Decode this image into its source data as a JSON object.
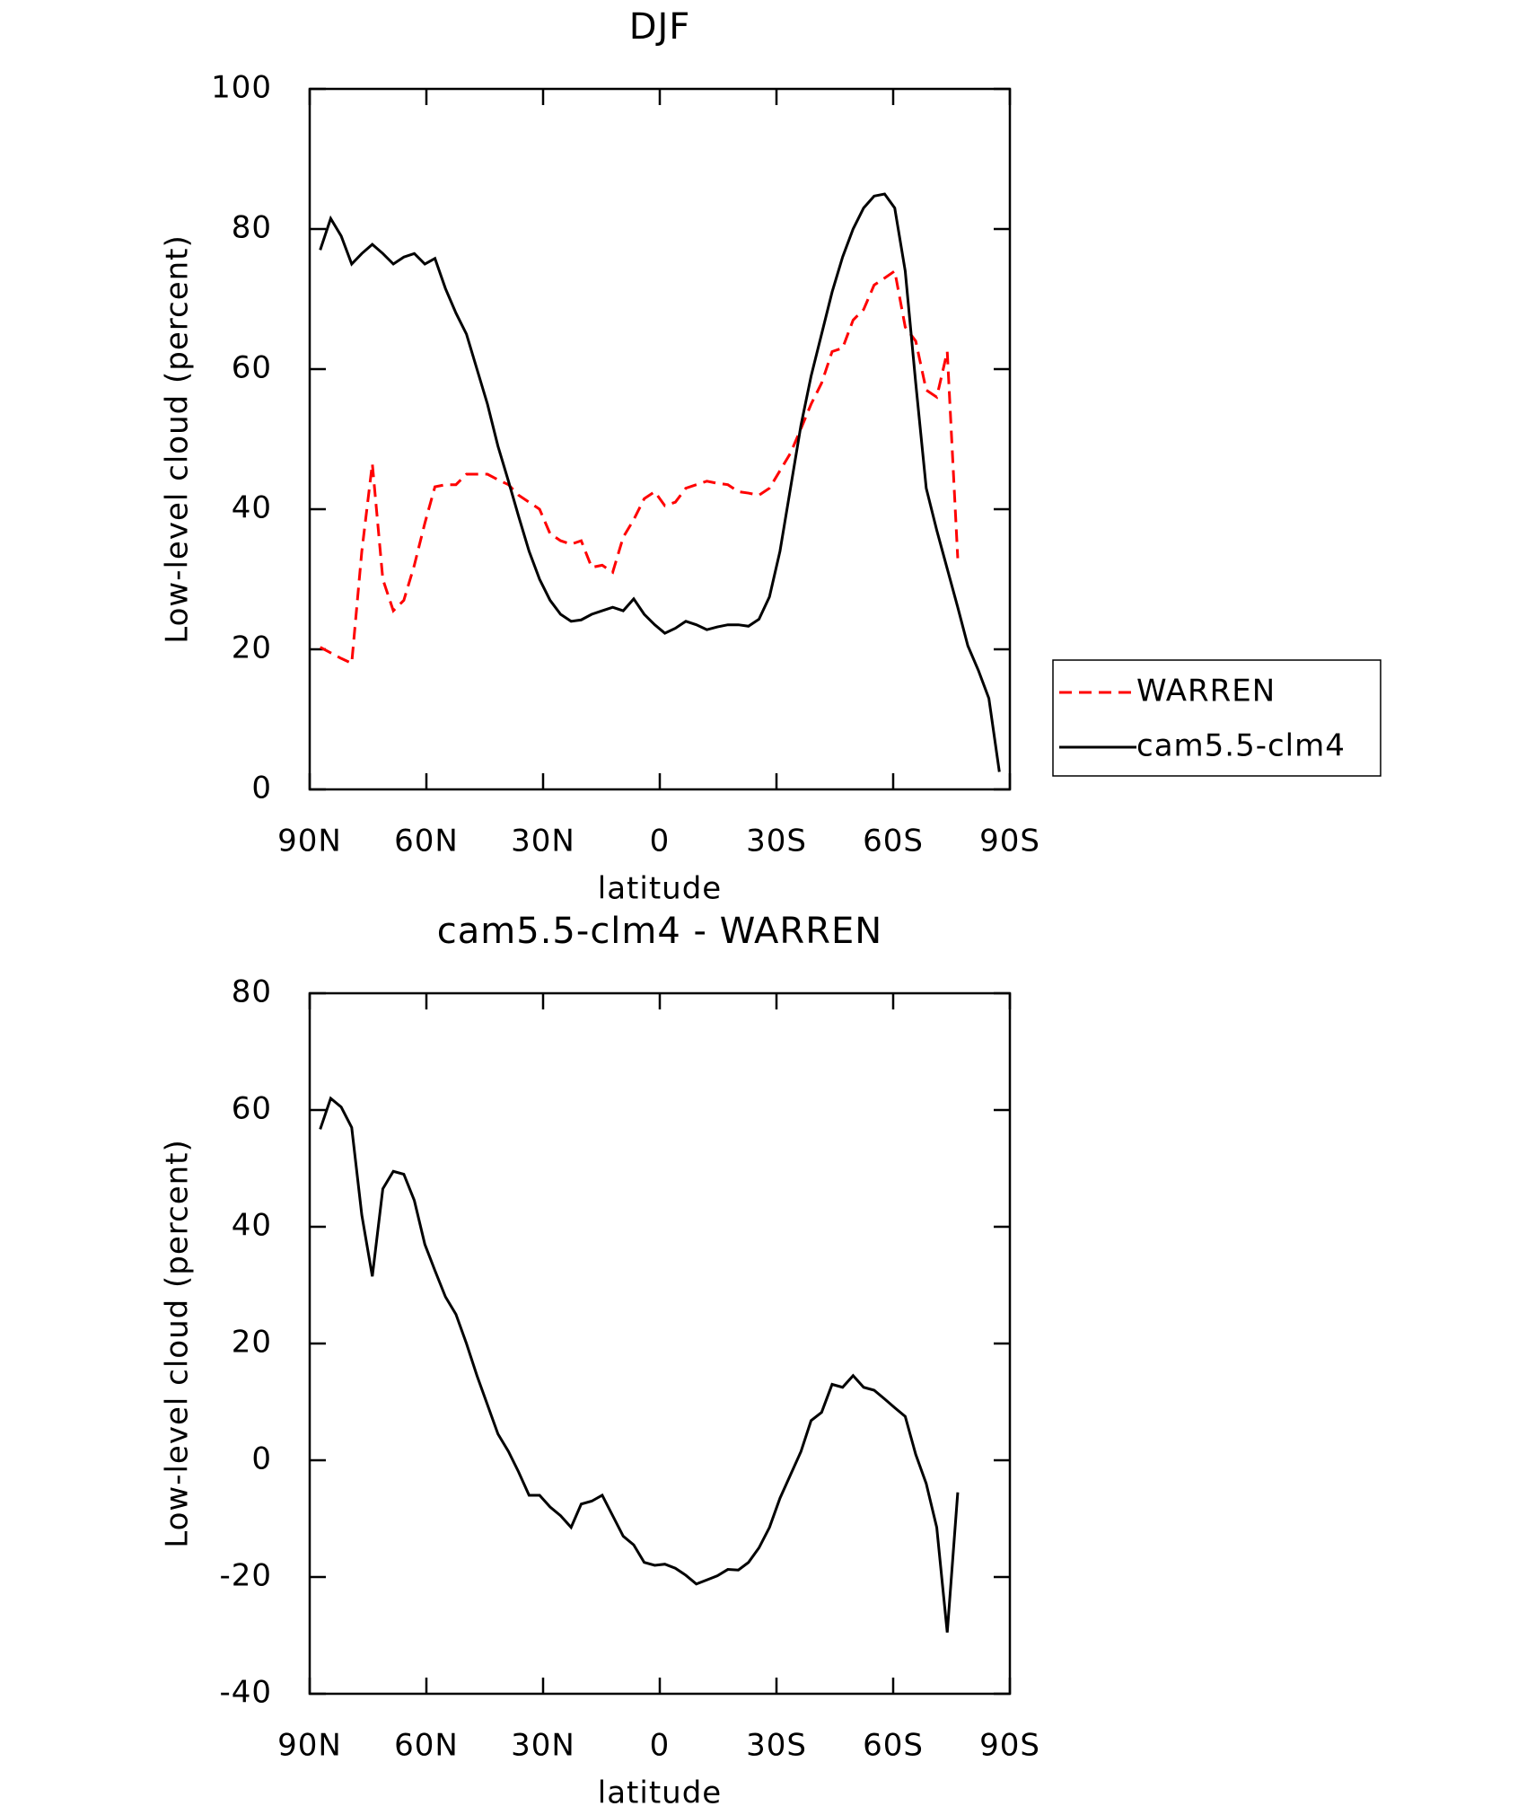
{
  "chart_data": [
    {
      "type": "line",
      "title": "DJF",
      "x_label": "latitude",
      "y_label": "Low-level cloud (percent)",
      "x": [
        87.3,
        84.6,
        81.9,
        79.2,
        76.6,
        73.9,
        71.2,
        68.5,
        65.8,
        63.1,
        60.4,
        57.8,
        55.1,
        52.4,
        49.7,
        47.0,
        44.3,
        41.6,
        38.9,
        36.3,
        33.6,
        30.9,
        28.2,
        25.5,
        22.8,
        20.2,
        17.5,
        14.8,
        12.1,
        9.4,
        6.7,
        4.0,
        1.3,
        -1.3,
        -4.0,
        -6.7,
        -9.4,
        -12.1,
        -14.8,
        -17.5,
        -20.2,
        -22.8,
        -25.5,
        -28.2,
        -30.9,
        -33.6,
        -36.3,
        -38.9,
        -41.6,
        -44.3,
        -47.0,
        -49.7,
        -52.4,
        -55.1,
        -57.8,
        -60.4,
        -63.1,
        -65.8,
        -68.5,
        -71.2,
        -73.9,
        -76.6,
        -79.2,
        -81.9,
        -84.6,
        -87.3
      ],
      "xlim": [
        90,
        -90
      ],
      "xticks": [
        {
          "value": 90,
          "label": "90N"
        },
        {
          "value": 60,
          "label": "60N"
        },
        {
          "value": 30,
          "label": "30N"
        },
        0,
        {
          "value": -30,
          "label": "30S"
        },
        {
          "value": -60,
          "label": "60S"
        },
        {
          "value": -90,
          "label": "90S"
        }
      ],
      "ylim": [
        0,
        100
      ],
      "yticks": [
        0,
        20,
        40,
        60,
        80,
        100
      ],
      "legend": "right",
      "series": [
        {
          "name": "WARREN",
          "color": "#ff0000",
          "line_style": "dashed",
          "values": [
            20.3,
            19.5,
            18.7,
            18,
            34,
            46.5,
            30,
            25.5,
            27,
            32,
            38,
            43.2,
            43.5,
            43.5,
            45,
            45,
            45,
            44.2,
            43.5,
            42,
            41,
            40,
            36.5,
            35.5,
            35,
            35.5,
            31.7,
            32,
            31,
            36,
            38.5,
            41.5,
            42.5,
            40.5,
            41,
            43,
            43.5,
            44,
            43.7,
            43.5,
            42.5,
            42.3,
            42,
            43,
            45.5,
            48,
            51.5,
            55,
            58,
            62.5,
            63,
            67,
            68.5,
            72,
            73,
            74,
            66,
            64,
            57,
            56,
            62.5,
            33,
            null,
            null,
            null,
            null
          ]
        },
        {
          "name": "cam5.5-clm4",
          "color": "#000000",
          "line_style": "solid",
          "values": [
            77,
            81.5,
            79,
            75,
            76.5,
            77.8,
            76.5,
            75,
            76,
            76.5,
            75,
            75.8,
            71.5,
            68,
            65,
            60,
            55,
            49,
            44,
            39,
            34,
            30,
            27,
            25,
            24,
            24.2,
            25,
            25.5,
            26,
            25.5,
            27.2,
            25,
            23.5,
            22.3,
            23,
            24,
            23.5,
            22.8,
            23.2,
            23.5,
            23.5,
            23.3,
            24.3,
            27.5,
            34,
            43,
            52,
            59,
            65,
            71,
            76,
            80,
            83,
            84.7,
            85,
            83,
            74,
            58,
            43,
            37,
            31.5,
            26,
            20.5,
            17,
            13,
            2.5
          ]
        }
      ]
    },
    {
      "type": "line",
      "title": "cam5.5-clm4 - WARREN",
      "x_label": "latitude",
      "y_label": "Low-level cloud (percent)",
      "x": [
        87.3,
        84.6,
        81.9,
        79.2,
        76.6,
        73.9,
        71.2,
        68.5,
        65.8,
        63.1,
        60.4,
        57.8,
        55.1,
        52.4,
        49.7,
        47.0,
        44.3,
        41.6,
        38.9,
        36.3,
        33.6,
        30.9,
        28.2,
        25.5,
        22.8,
        20.2,
        17.5,
        14.8,
        12.1,
        9.4,
        6.7,
        4.0,
        1.3,
        -1.3,
        -4.0,
        -6.7,
        -9.4,
        -12.1,
        -14.8,
        -17.5,
        -20.2,
        -22.8,
        -25.5,
        -28.2,
        -30.9,
        -33.6,
        -36.3,
        -38.9,
        -41.6,
        -44.3,
        -47.0,
        -49.7,
        -52.4,
        -55.1,
        -57.8,
        -60.4,
        -63.1,
        -65.8,
        -68.5,
        -71.2,
        -73.9,
        -76.6,
        -79.2,
        -81.9,
        -84.6,
        -87.3
      ],
      "xlim": [
        90,
        -90
      ],
      "xticks": [
        {
          "value": 90,
          "label": "90N"
        },
        {
          "value": 60,
          "label": "60N"
        },
        {
          "value": 30,
          "label": "30N"
        },
        0,
        {
          "value": -30,
          "label": "30S"
        },
        {
          "value": -60,
          "label": "60S"
        },
        {
          "value": -90,
          "label": "90S"
        }
      ],
      "ylim": [
        -40,
        80
      ],
      "yticks": [
        -40,
        -20,
        0,
        20,
        40,
        60,
        80
      ],
      "series": [
        {
          "color": "#000000",
          "line_style": "solid",
          "values": [
            56.7,
            62,
            60.5,
            57,
            42,
            31.5,
            46.5,
            49.5,
            49,
            44.5,
            37,
            32.5,
            28,
            25,
            20,
            14.5,
            9.5,
            4.5,
            1.5,
            -2,
            -6,
            -6,
            -8,
            -9.5,
            -11.5,
            -7.5,
            -7,
            -6,
            -9.5,
            -13,
            -14.5,
            -17.5,
            -18,
            -17.8,
            -18.5,
            -19.7,
            -21.2,
            -20.5,
            -19.8,
            -18.7,
            -18.8,
            -17.5,
            -15,
            -11.5,
            -6.5,
            -2.5,
            1.5,
            6.8,
            8.2,
            13,
            12.5,
            14.5,
            12.5,
            12,
            10.5,
            9,
            7.5,
            1,
            -4,
            -11.5,
            -29.5,
            -5.5,
            null,
            null,
            null,
            null
          ]
        }
      ]
    }
  ]
}
